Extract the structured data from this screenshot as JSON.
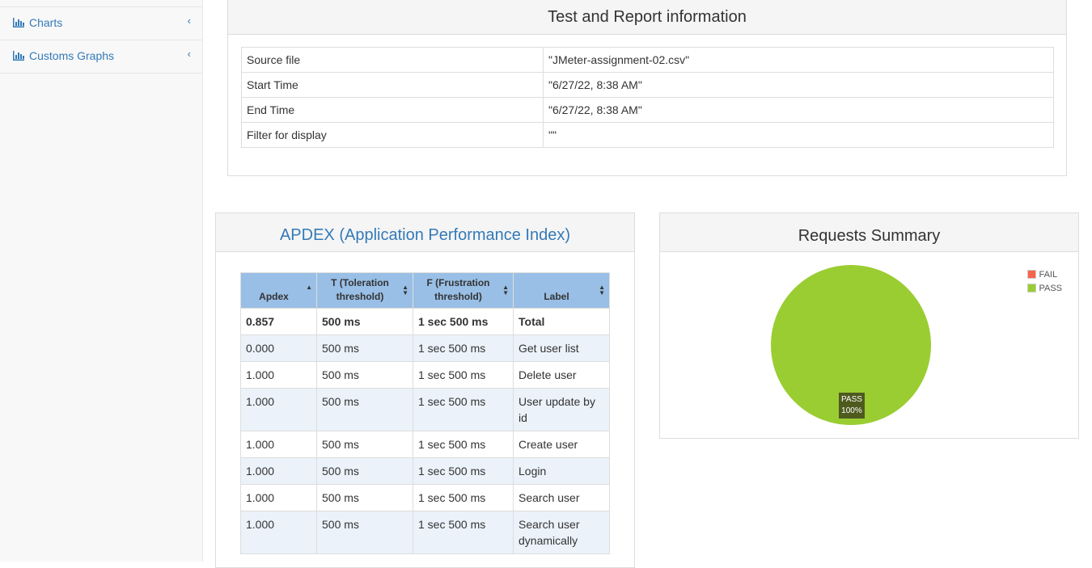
{
  "sidebar": {
    "items": [
      {
        "label": "Charts"
      },
      {
        "label": "Customs Graphs"
      }
    ]
  },
  "test_info": {
    "title": "Test and Report information",
    "rows": [
      {
        "key": "Source file",
        "value": "\"JMeter-assignment-02.csv\""
      },
      {
        "key": "Start Time",
        "value": "\"6/27/22, 8:38 AM\""
      },
      {
        "key": "End Time",
        "value": "\"6/27/22, 8:38 AM\""
      },
      {
        "key": "Filter for display",
        "value": "\"\""
      }
    ]
  },
  "apdex": {
    "title": "APDEX (Application Performance Index)",
    "headers": [
      "Apdex",
      "T (Toleration threshold)",
      "F (Frustration threshold)",
      "Label"
    ],
    "total": {
      "apdex": "0.857",
      "t": "500 ms",
      "f": "1 sec 500 ms",
      "label": "Total"
    },
    "rows": [
      {
        "apdex": "0.000",
        "t": "500 ms",
        "f": "1 sec 500 ms",
        "label": "Get user list"
      },
      {
        "apdex": "1.000",
        "t": "500 ms",
        "f": "1 sec 500 ms",
        "label": "Delete user"
      },
      {
        "apdex": "1.000",
        "t": "500 ms",
        "f": "1 sec 500 ms",
        "label": "User update by id"
      },
      {
        "apdex": "1.000",
        "t": "500 ms",
        "f": "1 sec 500 ms",
        "label": "Create user"
      },
      {
        "apdex": "1.000",
        "t": "500 ms",
        "f": "1 sec 500 ms",
        "label": "Login"
      },
      {
        "apdex": "1.000",
        "t": "500 ms",
        "f": "1 sec 500 ms",
        "label": "Search user"
      },
      {
        "apdex": "1.000",
        "t": "500 ms",
        "f": "1 sec 500 ms",
        "label": "Search user dynamically"
      }
    ]
  },
  "requests_summary": {
    "title": "Requests Summary",
    "legend": [
      {
        "name": "FAIL",
        "color": "#f7644b"
      },
      {
        "name": "PASS",
        "color": "#9acd32"
      }
    ],
    "slice_label": "PASS",
    "slice_percent": "100%"
  },
  "chart_data": {
    "type": "pie",
    "categories": [
      "FAIL",
      "PASS"
    ],
    "values": [
      0,
      100
    ],
    "colors": [
      "#f7644b",
      "#9acd32"
    ],
    "title": "Requests Summary",
    "legend_position": "top-right"
  }
}
